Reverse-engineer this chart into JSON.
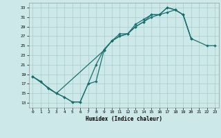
{
  "xlabel": "Humidex (Indice chaleur)",
  "xlim": [
    -0.5,
    23.5
  ],
  "ylim": [
    12,
    34
  ],
  "xticks": [
    0,
    1,
    2,
    3,
    4,
    5,
    6,
    7,
    8,
    9,
    10,
    11,
    12,
    13,
    14,
    15,
    16,
    17,
    18,
    19,
    20,
    21,
    22,
    23
  ],
  "yticks": [
    13,
    15,
    17,
    19,
    21,
    23,
    25,
    27,
    29,
    31,
    33
  ],
  "bg_color": "#cce8e8",
  "grid_color": "#aacccc",
  "line_color": "#1a7070",
  "curve1_x": [
    0,
    1,
    2,
    3,
    4,
    5,
    6,
    7,
    8,
    9,
    10,
    11,
    12,
    13,
    14,
    15,
    16,
    17,
    18,
    19,
    20
  ],
  "curve1_y": [
    18.5,
    17.5,
    16.0,
    15.0,
    14.2,
    13.2,
    13.2,
    17.0,
    21.0,
    24.2,
    26.0,
    27.5,
    27.5,
    29.5,
    30.5,
    31.5,
    31.5,
    33.0,
    32.5,
    31.5,
    26.5
  ],
  "curve2_x": [
    0,
    1,
    2,
    3,
    4,
    5,
    6,
    7,
    8,
    9,
    10,
    11,
    12,
    13,
    14,
    15,
    16,
    17,
    18,
    19,
    20
  ],
  "curve2_y": [
    18.5,
    17.5,
    16.0,
    15.0,
    14.2,
    13.2,
    13.2,
    17.0,
    17.5,
    24.0,
    26.0,
    27.0,
    27.5,
    29.0,
    30.0,
    31.0,
    31.5,
    32.0,
    32.5,
    31.5,
    26.5
  ],
  "curve3_x": [
    0,
    3,
    9,
    10,
    11,
    12,
    13,
    14,
    15,
    16,
    17,
    18,
    19,
    20,
    22,
    23
  ],
  "curve3_y": [
    18.5,
    15.0,
    24.0,
    26.0,
    27.0,
    27.5,
    29.0,
    30.0,
    31.5,
    31.5,
    33.0,
    32.5,
    31.5,
    26.5,
    25.0,
    25.0
  ]
}
